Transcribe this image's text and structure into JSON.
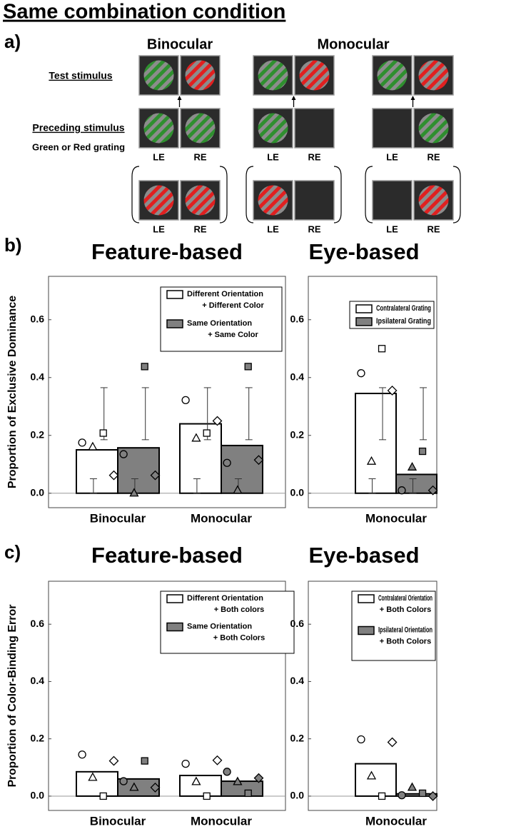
{
  "title": "Same combination condition",
  "panel_labels": [
    "a)",
    "b)",
    "c)"
  ],
  "panel_a": {
    "columns": [
      "Binocular",
      "Monocular"
    ],
    "test_label": "Test stimulus",
    "preceding_label": "Preceding stimulus",
    "preceding_note": "Green or Red grating",
    "eye_labels": [
      "LE",
      "RE"
    ]
  },
  "chart_data": [
    {
      "type": "bar",
      "title": "Feature-based",
      "ylabel": "Proportion of Exclusive Dominance",
      "categories": [
        "Binocular",
        "Monocular"
      ],
      "series": [
        {
          "name": [
            "Different Orientation",
            "+ Different Color"
          ],
          "color": "#ffffff",
          "values": [
            0.15,
            0.24
          ],
          "points": [
            [
              0.175,
              0.16,
              0.208,
              0.062
            ],
            [
              0.322,
              0.19,
              0.208,
              0.25
            ]
          ],
          "lower_ci": [
            [
              0,
              0.05
            ],
            [
              0,
              0.05
            ]
          ],
          "upper_ci": [
            [
              0.185,
              0.365
            ],
            [
              0.185,
              0.365
            ]
          ]
        },
        {
          "name": [
            "Same Orientation",
            "+ Same Color"
          ],
          "color": "#808080",
          "values": [
            0.157,
            0.165
          ],
          "points": [
            [
              0.135,
              0,
              0.438,
              0.062
            ],
            [
              0.105,
              0.01,
              0.438,
              0.115
            ]
          ],
          "lower_ci": [
            [
              0,
              0.05
            ],
            [
              0,
              0.05
            ]
          ],
          "upper_ci": [
            [
              0.185,
              0.365
            ],
            [
              0.185,
              0.365
            ]
          ]
        }
      ],
      "markers": [
        "circle",
        "triangle",
        "square",
        "diamond"
      ],
      "ylim": [
        -0.05,
        0.75
      ],
      "yticks": [
        {
          "value": 0,
          "label": "0.0"
        },
        0.2,
        0.4,
        0.6
      ],
      "legend": "upper right"
    },
    {
      "type": "bar",
      "title": "Eye-based",
      "categories": [
        "Monocular"
      ],
      "series": [
        {
          "name": [
            "Contralateral Grating"
          ],
          "color": "#ffffff",
          "values": [
            0.345
          ],
          "points": [
            [
              0.415,
              0.11,
              0.5,
              0.355
            ]
          ],
          "lower_ci": [
            [
              0,
              0.05
            ]
          ],
          "upper_ci": [
            [
              0.185,
              0.365
            ]
          ]
        },
        {
          "name": [
            "Ipsilateral Grating"
          ],
          "color": "#808080",
          "values": [
            0.065
          ],
          "points": [
            [
              0.01,
              0.09,
              0.145,
              0.01
            ]
          ],
          "lower_ci": [
            [
              0,
              0.05
            ]
          ],
          "upper_ci": [
            [
              0.185,
              0.365
            ]
          ]
        }
      ],
      "markers": [
        "circle",
        "triangle",
        "square",
        "diamond"
      ],
      "ylim": [
        -0.05,
        0.75
      ],
      "yticks": [
        {
          "value": 0,
          "label": "0.0"
        },
        0.2,
        0.4,
        0.6
      ],
      "legend": "upper right"
    },
    {
      "type": "bar",
      "title": "Feature-based",
      "ylabel": "Proportion of Color-Binding Error",
      "categories": [
        "Binocular",
        "Monocular"
      ],
      "series": [
        {
          "name": [
            "Different Orientation",
            "+ Both colors"
          ],
          "color": "#ffffff",
          "values": [
            0.085,
            0.072
          ],
          "points": [
            [
              0.145,
              0.065,
              0,
              0.123
            ],
            [
              0.113,
              0.05,
              0,
              0.125
            ]
          ]
        },
        {
          "name": [
            "Same Orientation",
            "+ Both Colors"
          ],
          "color": "#808080",
          "values": [
            0.06,
            0.052
          ],
          "points": [
            [
              0.052,
              0.03,
              0.123,
              0.03
            ],
            [
              0.085,
              0.05,
              0.01,
              0.063
            ]
          ]
        }
      ],
      "markers": [
        "circle",
        "triangle",
        "square",
        "diamond"
      ],
      "ylim": [
        -0.05,
        0.75
      ],
      "yticks": [
        {
          "value": 0,
          "label": "0.0"
        },
        0.2,
        0.4,
        0.6
      ],
      "legend": "upper right"
    },
    {
      "type": "bar",
      "title": "Eye-based",
      "categories": [
        "Monocular"
      ],
      "series": [
        {
          "name": [
            "Contralateral Orientation",
            "+ Both Colors"
          ],
          "color": "#ffffff",
          "values": [
            0.113
          ],
          "points": [
            [
              0.198,
              0.07,
              0,
              0.188
            ]
          ]
        },
        {
          "name": [
            "Ipsilateral Orientation",
            "+ Both Colors"
          ],
          "color": "#808080",
          "values": [
            0.008
          ],
          "points": [
            [
              0.003,
              0.03,
              0.01,
              0
            ]
          ]
        }
      ],
      "markers": [
        "circle",
        "triangle",
        "square",
        "diamond"
      ],
      "ylim": [
        -0.05,
        0.75
      ],
      "yticks": [
        {
          "value": 0,
          "label": "0.0"
        },
        0.2,
        0.4,
        0.6
      ],
      "legend": "upper right"
    }
  ]
}
